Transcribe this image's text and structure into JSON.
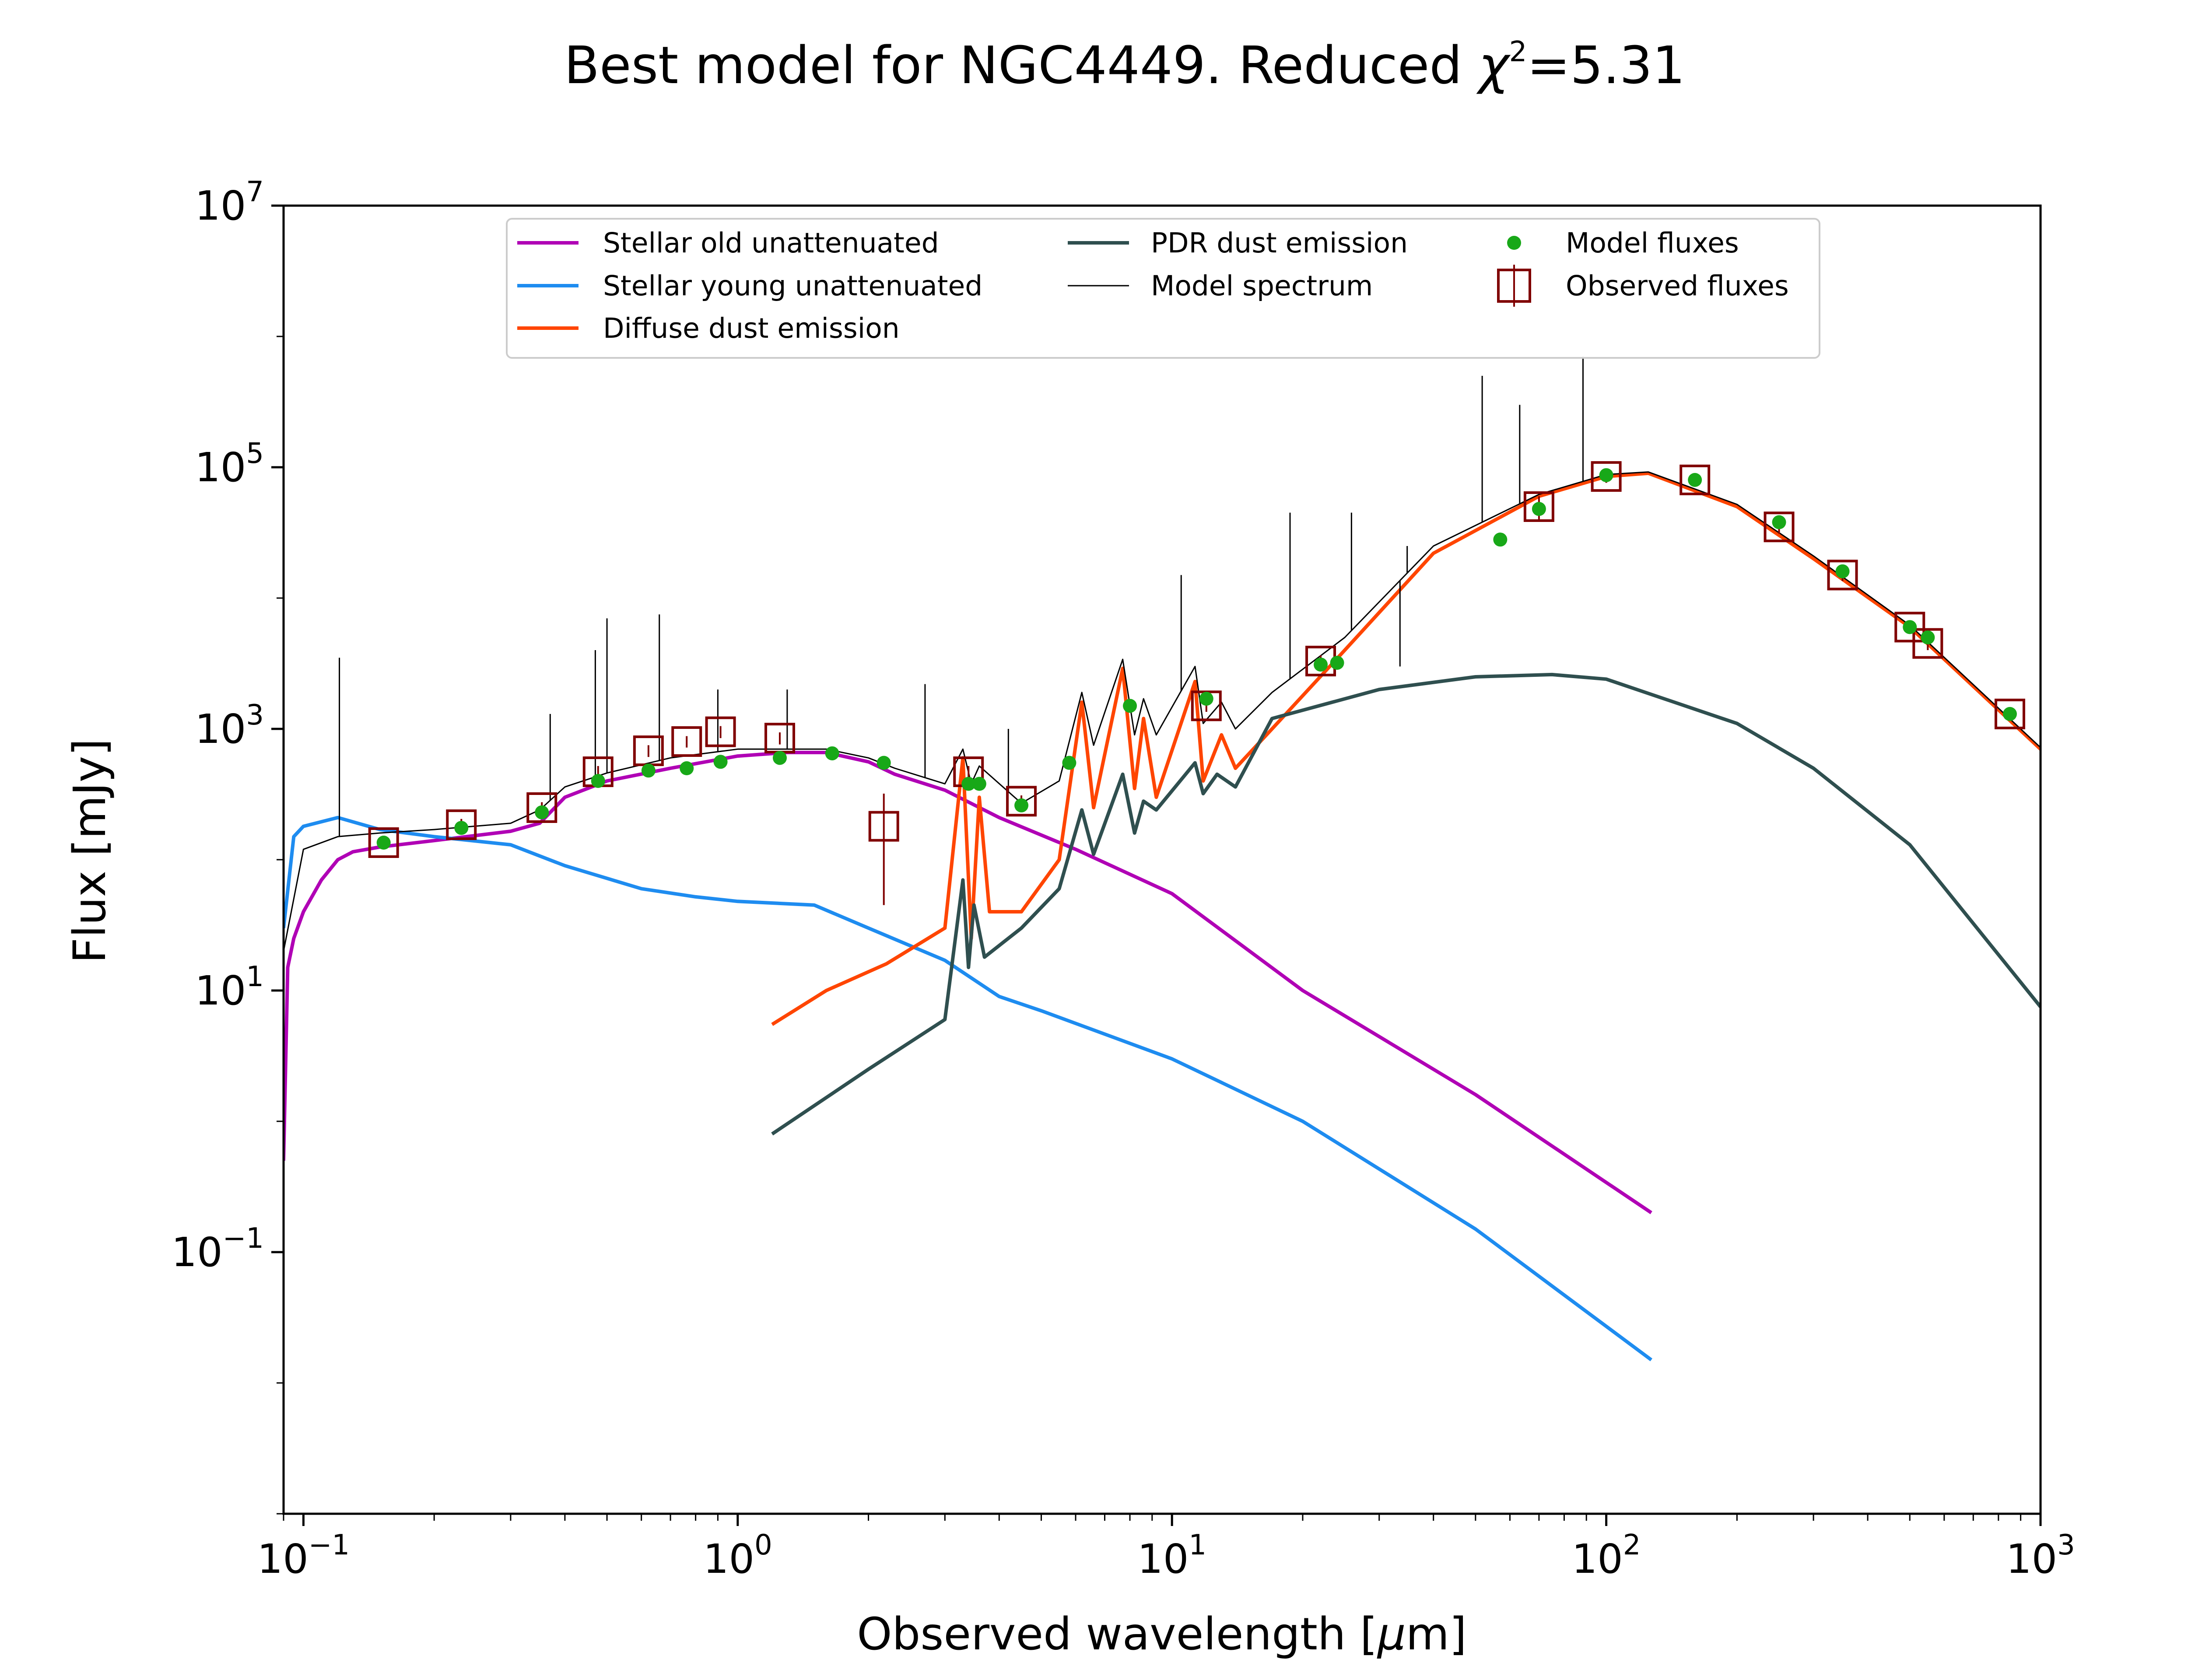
{
  "chart_data": {
    "type": "line",
    "title": "Best model for NGC4449. Reduced χ²=5.31",
    "title_parts": {
      "main": "Best model for NGC4449. Reduced ",
      "chi": "χ",
      "chi_exp": "2",
      "value": "=5.31"
    },
    "xlabel": "Observed wavelength [μm]",
    "xlabel_parts": {
      "main": "Observed wavelength [",
      "mu": "μ",
      "end": "m]"
    },
    "ylabel": "Flux [mJy]",
    "xscale": "log",
    "yscale": "log",
    "xlim": [
      0.09,
      1000
    ],
    "ylim": [
      0.001,
      10000000
    ],
    "grid": false,
    "legend_position": "top-center",
    "x_ticks": [
      {
        "value": 0.1,
        "base": "10",
        "exp": "−1"
      },
      {
        "value": 1,
        "base": "10",
        "exp": "0"
      },
      {
        "value": 10,
        "base": "10",
        "exp": "1"
      },
      {
        "value": 100,
        "base": "10",
        "exp": "2"
      },
      {
        "value": 1000,
        "base": "10",
        "exp": "3"
      }
    ],
    "y_ticks": [
      {
        "value": 0.1,
        "base": "10",
        "exp": "−1"
      },
      {
        "value": 10,
        "base": "10",
        "exp": "1"
      },
      {
        "value": 1000,
        "base": "10",
        "exp": "3"
      },
      {
        "value": 100000,
        "base": "10",
        "exp": "5"
      },
      {
        "value": 10000000,
        "base": "10",
        "exp": "7"
      }
    ],
    "legend": [
      {
        "label": "Stellar old unattenuated",
        "kind": "line",
        "color": "#b000b5"
      },
      {
        "label": "Stellar young unattenuated",
        "kind": "line",
        "color": "#1e8cf0"
      },
      {
        "label": "Diffuse dust emission",
        "kind": "line",
        "color": "#ff4500"
      },
      {
        "label": "PDR dust emission",
        "kind": "line",
        "color": "#2f4f4f"
      },
      {
        "label": "Model spectrum",
        "kind": "thin-line",
        "color": "#000000"
      },
      {
        "label": "Model fluxes",
        "kind": "dot",
        "color": "#18a818"
      },
      {
        "label": "Observed fluxes",
        "kind": "square",
        "color": "#800000"
      }
    ],
    "series": [
      {
        "name": "Stellar old unattenuated",
        "color": "#b000b5",
        "points": [
          [
            0.09,
            0.5
          ],
          [
            0.092,
            15
          ],
          [
            0.095,
            25
          ],
          [
            0.1,
            40
          ],
          [
            0.11,
            70
          ],
          [
            0.12,
            100
          ],
          [
            0.13,
            115
          ],
          [
            0.15,
            125
          ],
          [
            0.2,
            140
          ],
          [
            0.3,
            165
          ],
          [
            0.35,
            190
          ],
          [
            0.4,
            300
          ],
          [
            0.5,
            400
          ],
          [
            0.7,
            500
          ],
          [
            1,
            620
          ],
          [
            1.3,
            660
          ],
          [
            1.6,
            660
          ],
          [
            2,
            560
          ],
          [
            2.3,
            450
          ],
          [
            3,
            340
          ],
          [
            4,
            210
          ],
          [
            6,
            120
          ],
          [
            10,
            55
          ],
          [
            20,
            10
          ],
          [
            50,
            1.6
          ],
          [
            127,
            0.2
          ]
        ]
      },
      {
        "name": "Stellar young unattenuated",
        "color": "#1e8cf0",
        "points": [
          [
            0.09,
            30
          ],
          [
            0.095,
            150
          ],
          [
            0.1,
            180
          ],
          [
            0.12,
            210
          ],
          [
            0.15,
            170
          ],
          [
            0.2,
            150
          ],
          [
            0.3,
            130
          ],
          [
            0.4,
            90
          ],
          [
            0.6,
            60
          ],
          [
            0.8,
            52
          ],
          [
            1,
            48
          ],
          [
            1.5,
            45
          ],
          [
            2,
            30
          ],
          [
            3,
            17
          ],
          [
            4,
            9
          ],
          [
            5,
            7
          ],
          [
            10,
            3
          ],
          [
            20,
            1
          ],
          [
            50,
            0.15
          ],
          [
            127,
            0.015
          ]
        ]
      },
      {
        "name": "Diffuse dust emission",
        "color": "#ff4500",
        "points": [
          [
            1.2,
            5.5
          ],
          [
            1.6,
            10
          ],
          [
            2.2,
            16
          ],
          [
            3,
            30
          ],
          [
            3.3,
            600
          ],
          [
            3.45,
            25
          ],
          [
            3.6,
            300
          ],
          [
            3.8,
            40
          ],
          [
            4.5,
            40
          ],
          [
            5.5,
            100
          ],
          [
            6.2,
            1600
          ],
          [
            6.6,
            250
          ],
          [
            7.7,
            2900
          ],
          [
            8.2,
            350
          ],
          [
            8.6,
            1200
          ],
          [
            9.2,
            300
          ],
          [
            11.3,
            2300
          ],
          [
            11.8,
            400
          ],
          [
            13,
            900
          ],
          [
            14,
            500
          ],
          [
            17,
            1000
          ],
          [
            25,
            4000
          ],
          [
            40,
            22000
          ],
          [
            70,
            60000
          ],
          [
            100,
            85000
          ],
          [
            125,
            90000
          ],
          [
            200,
            50000
          ],
          [
            300,
            20000
          ],
          [
            500,
            6000
          ],
          [
            1000,
            700
          ]
        ]
      },
      {
        "name": "PDR dust emission",
        "color": "#2f4f4f",
        "points": [
          [
            1.2,
            0.8
          ],
          [
            2,
            2.5
          ],
          [
            3,
            6
          ],
          [
            3.3,
            70
          ],
          [
            3.4,
            15
          ],
          [
            3.5,
            45
          ],
          [
            3.7,
            18
          ],
          [
            4.5,
            30
          ],
          [
            5.5,
            60
          ],
          [
            6.2,
            240
          ],
          [
            6.6,
            110
          ],
          [
            7.7,
            450
          ],
          [
            8.2,
            160
          ],
          [
            8.6,
            280
          ],
          [
            9.2,
            240
          ],
          [
            11.3,
            550
          ],
          [
            11.8,
            320
          ],
          [
            12.7,
            450
          ],
          [
            14,
            360
          ],
          [
            17,
            1200
          ],
          [
            30,
            2000
          ],
          [
            50,
            2500
          ],
          [
            75,
            2600
          ],
          [
            100,
            2400
          ],
          [
            200,
            1100
          ],
          [
            300,
            500
          ],
          [
            500,
            130
          ],
          [
            1000,
            7.5
          ]
        ]
      },
      {
        "name": "Model spectrum",
        "color": "#000000",
        "points": [
          [
            0.09,
            20
          ],
          [
            0.1,
            120
          ],
          [
            0.12,
            150
          ],
          [
            0.15,
            160
          ],
          [
            0.2,
            170
          ],
          [
            0.3,
            190
          ],
          [
            0.35,
            240
          ],
          [
            0.4,
            360
          ],
          [
            0.5,
            460
          ],
          [
            0.7,
            600
          ],
          [
            1,
            700
          ],
          [
            1.3,
            700
          ],
          [
            1.6,
            700
          ],
          [
            2,
            600
          ],
          [
            2.3,
            500
          ],
          [
            3,
            380
          ],
          [
            3.3,
            700
          ],
          [
            3.45,
            380
          ],
          [
            3.6,
            520
          ],
          [
            4.5,
            270
          ],
          [
            5.5,
            400
          ],
          [
            6.2,
            1900
          ],
          [
            6.6,
            750
          ],
          [
            7.7,
            3400
          ],
          [
            8.2,
            900
          ],
          [
            8.6,
            1700
          ],
          [
            9.2,
            900
          ],
          [
            11.3,
            3000
          ],
          [
            11.8,
            1100
          ],
          [
            13,
            1600
          ],
          [
            14,
            1000
          ],
          [
            17,
            1900
          ],
          [
            25,
            5000
          ],
          [
            40,
            25000
          ],
          [
            70,
            62000
          ],
          [
            100,
            88000
          ],
          [
            125,
            92000
          ],
          [
            200,
            52000
          ],
          [
            300,
            21000
          ],
          [
            500,
            6200
          ],
          [
            1000,
            720
          ]
        ]
      }
    ],
    "model_spectrum_lines": [
      [
        0.121,
        3500
      ],
      [
        0.37,
        1300
      ],
      [
        0.47,
        4000
      ],
      [
        0.5,
        7000
      ],
      [
        0.66,
        7500
      ],
      [
        0.9,
        2000
      ],
      [
        1.3,
        2000
      ],
      [
        2.7,
        2200
      ],
      [
        4.2,
        1000
      ],
      [
        10.5,
        15000
      ],
      [
        18.7,
        45000
      ],
      [
        25.9,
        45000
      ],
      [
        33.5,
        3000
      ],
      [
        34.8,
        25000
      ],
      [
        51.8,
        500000
      ],
      [
        63.2,
        300000
      ],
      [
        88.4,
        700000
      ]
    ],
    "model_fluxes": [
      [
        0.153,
        135
      ],
      [
        0.231,
        175
      ],
      [
        0.354,
        230
      ],
      [
        0.477,
        400
      ],
      [
        0.623,
        480
      ],
      [
        0.763,
        500
      ],
      [
        0.913,
        560
      ],
      [
        1.25,
        600
      ],
      [
        1.65,
        650
      ],
      [
        2.17,
        550
      ],
      [
        3.4,
        380
      ],
      [
        3.6,
        380
      ],
      [
        4.5,
        260
      ],
      [
        5.8,
        550
      ],
      [
        8,
        1500
      ],
      [
        12,
        1700
      ],
      [
        22,
        3100
      ],
      [
        24,
        3200
      ],
      [
        57,
        28000
      ],
      [
        70,
        48000
      ],
      [
        100,
        87000
      ],
      [
        160,
        80000
      ],
      [
        250,
        38000
      ],
      [
        350,
        16000
      ],
      [
        500,
        6000
      ],
      [
        550,
        5000
      ],
      [
        850,
        1300
      ]
    ],
    "observed_fluxes": [
      {
        "x": 0.153,
        "y": 135,
        "err_lo": 120,
        "err_hi": 150
      },
      {
        "x": 0.231,
        "y": 185,
        "err_lo": 165,
        "err_hi": 205
      },
      {
        "x": 0.354,
        "y": 250,
        "err_lo": 225,
        "err_hi": 275
      },
      {
        "x": 0.477,
        "y": 470,
        "err_lo": 420,
        "err_hi": 520
      },
      {
        "x": 0.623,
        "y": 680,
        "err_lo": 610,
        "err_hi": 750
      },
      {
        "x": 0.763,
        "y": 800,
        "err_lo": 720,
        "err_hi": 880
      },
      {
        "x": 0.913,
        "y": 950,
        "err_lo": 850,
        "err_hi": 1050
      },
      {
        "x": 1.25,
        "y": 850,
        "err_lo": 760,
        "err_hi": 940
      },
      {
        "x": 2.17,
        "y": 180,
        "err_lo": 45,
        "err_hi": 320
      },
      {
        "x": 3.4,
        "y": 470,
        "err_lo": 420,
        "err_hi": 520
      },
      {
        "x": 4.5,
        "y": 280,
        "err_lo": 250,
        "err_hi": 310
      },
      {
        "x": 12,
        "y": 1500,
        "err_lo": 1350,
        "err_hi": 1650
      },
      {
        "x": 22,
        "y": 3300,
        "err_lo": 2950,
        "err_hi": 3650
      },
      {
        "x": 70,
        "y": 50000,
        "err_lo": 40000,
        "err_hi": 60000
      },
      {
        "x": 100,
        "y": 85000,
        "err_lo": 76000,
        "err_hi": 94000
      },
      {
        "x": 160,
        "y": 80000,
        "err_lo": 72000,
        "err_hi": 88000
      },
      {
        "x": 250,
        "y": 35000,
        "err_lo": 31000,
        "err_hi": 39000
      },
      {
        "x": 350,
        "y": 15000,
        "err_lo": 13500,
        "err_hi": 16500
      },
      {
        "x": 500,
        "y": 6000,
        "err_lo": 5400,
        "err_hi": 6600
      },
      {
        "x": 550,
        "y": 4500,
        "err_lo": 4000,
        "err_hi": 5000
      },
      {
        "x": 850,
        "y": 1300,
        "err_lo": 1170,
        "err_hi": 1430
      }
    ]
  }
}
